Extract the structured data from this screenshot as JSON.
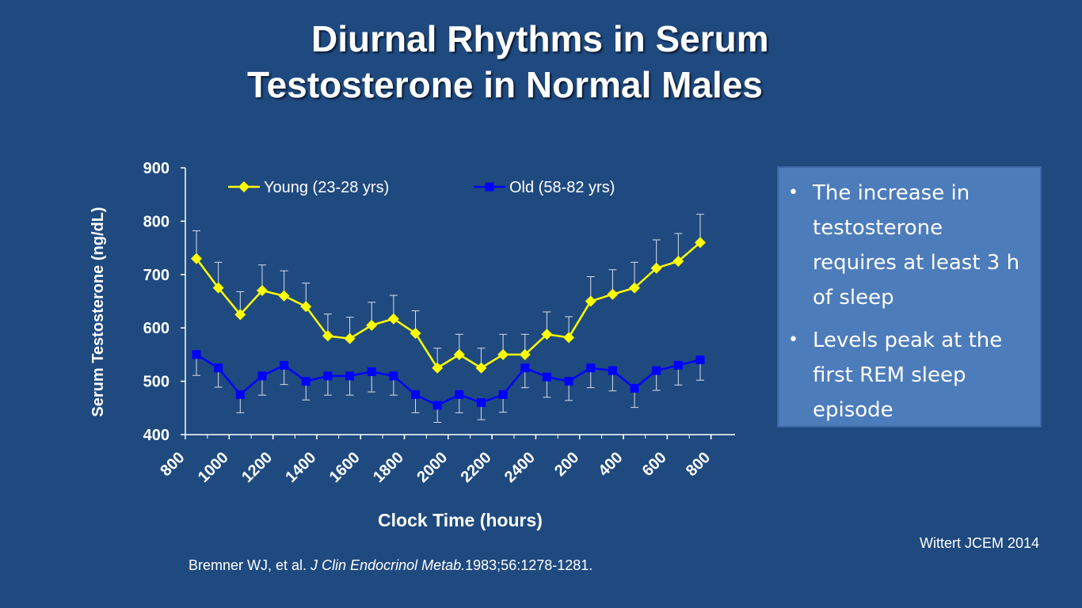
{
  "slide": {
    "title_line1": "Diurnal Rhythms in Serum",
    "title_line2": "Testosterone in Normal Males"
  },
  "notes": {
    "bullets": [
      "The increase in testosterone requires at least 3 h of sleep",
      "Levels peak at the first REM sleep episode"
    ]
  },
  "credit": "Wittert JCEM 2014",
  "citation": {
    "authors": "Bremner WJ,  et al. ",
    "journal": "J Clin Endocrinol Metab.",
    "details": "1983;56:1278-1281."
  },
  "chart_data": {
    "type": "line",
    "xlabel": "Clock Time (hours)",
    "ylabel": "Serum Testosterone (ng/dL)",
    "ylim": [
      400,
      900
    ],
    "yticks": [
      400,
      500,
      600,
      700,
      800,
      900
    ],
    "xtick_labels": [
      "800",
      "1000",
      "1200",
      "1400",
      "1600",
      "1800",
      "2000",
      "2200",
      "2400",
      "200",
      "400",
      "600",
      "800"
    ],
    "legend_position": "top",
    "grid": false,
    "series": [
      {
        "name": "Young (23-28 yrs)",
        "color": "#ffff00",
        "marker": "diamond",
        "values": [
          730,
          675,
          625,
          670,
          660,
          640,
          585,
          580,
          605,
          617,
          590,
          525,
          550,
          525,
          550,
          550,
          588,
          582,
          650,
          663,
          675,
          712,
          725,
          760
        ],
        "error_upper": [
          782,
          723,
          668,
          718,
          707,
          684,
          626,
          620,
          648,
          661,
          632,
          562,
          588,
          562,
          588,
          588,
          630,
          621,
          696,
          709,
          723,
          765,
          777,
          813
        ]
      },
      {
        "name": "Old (58-82 yrs)",
        "color": "#0000ff",
        "marker": "square",
        "values": [
          550,
          525,
          475,
          510,
          530,
          500,
          510,
          510,
          518,
          510,
          475,
          455,
          475,
          460,
          475,
          525,
          508,
          500,
          525,
          520,
          487,
          520,
          530,
          540
        ],
        "error_lower": [
          511,
          489,
          441,
          474,
          494,
          465,
          474,
          474,
          480,
          474,
          441,
          423,
          441,
          428,
          442,
          488,
          470,
          464,
          488,
          482,
          451,
          483,
          493,
          502
        ]
      }
    ]
  }
}
